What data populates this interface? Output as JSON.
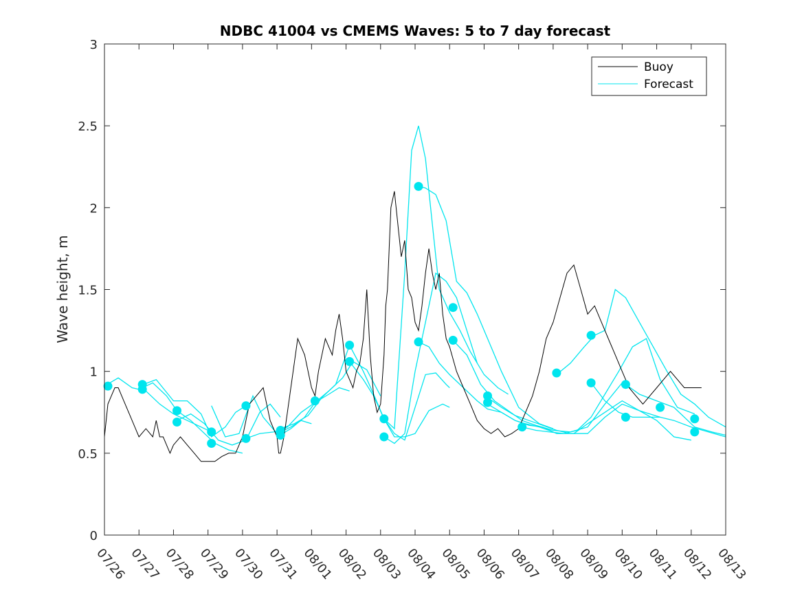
{
  "chart_data": {
    "type": "line",
    "title": "NDBC 41004 vs CMEMS Waves: 5 to 7 day forecast",
    "ylabel": "Wave height, m",
    "xlabel": "",
    "xlim": [
      0,
      18
    ],
    "ylim": [
      0,
      3
    ],
    "x_tick_labels": [
      "07/26",
      "07/27",
      "07/28",
      "07/29",
      "07/30",
      "07/31",
      "08/01",
      "08/02",
      "08/03",
      "08/04",
      "08/05",
      "08/06",
      "08/07",
      "08/08",
      "08/09",
      "08/10",
      "08/11",
      "08/12",
      "08/13"
    ],
    "y_ticks": [
      0,
      0.5,
      1,
      1.5,
      2,
      2.5,
      3
    ],
    "y_tick_labels": [
      "0",
      "0.5",
      "1",
      "1.5",
      "2",
      "2.5",
      "3"
    ],
    "grid": false,
    "legend_position": "top-right",
    "legend": [
      {
        "label": "Buoy",
        "color": "#000000"
      },
      {
        "label": "Forecast",
        "color": "#00e5ee"
      }
    ],
    "colors": {
      "buoy": "#000000",
      "forecast": "#00e5ee",
      "axes": "#262626"
    },
    "buoy": {
      "x": [
        0,
        0.05,
        0.1,
        0.2,
        0.3,
        0.4,
        0.5,
        0.6,
        0.7,
        0.8,
        0.9,
        1.0,
        1.2,
        1.4,
        1.5,
        1.6,
        1.7,
        1.8,
        1.9,
        2.0,
        2.2,
        2.4,
        2.6,
        2.8,
        3.0,
        3.2,
        3.4,
        3.6,
        3.8,
        4.0,
        4.2,
        4.4,
        4.6,
        4.8,
        5.0,
        5.05,
        5.1,
        5.2,
        5.3,
        5.4,
        5.5,
        5.6,
        5.7,
        5.8,
        6.0,
        6.1,
        6.2,
        6.3,
        6.4,
        6.5,
        6.6,
        6.7,
        6.8,
        6.9,
        7.0,
        7.1,
        7.2,
        7.3,
        7.4,
        7.5,
        7.6,
        7.7,
        7.8,
        7.9,
        8.0,
        8.05,
        8.1,
        8.15,
        8.2,
        8.3,
        8.4,
        8.5,
        8.6,
        8.7,
        8.8,
        8.9,
        9.0,
        9.1,
        9.2,
        9.3,
        9.4,
        9.5,
        9.6,
        9.7,
        9.8,
        9.9,
        10.0,
        10.2,
        10.4,
        10.6,
        10.8,
        11.0,
        11.2,
        11.4,
        11.6,
        11.8,
        12.0,
        12.2,
        12.4,
        12.6,
        12.8,
        13.0,
        13.2,
        13.4,
        13.6,
        13.8,
        14.0,
        14.2,
        14.4,
        14.6,
        14.8,
        15.0,
        15.2,
        15.4,
        15.6,
        15.8,
        16.0,
        16.2,
        16.4,
        16.6,
        16.8,
        17.0,
        17.2,
        17.3
      ],
      "y": [
        0.6,
        0.7,
        0.8,
        0.85,
        0.9,
        0.9,
        0.85,
        0.8,
        0.75,
        0.7,
        0.65,
        0.6,
        0.65,
        0.6,
        0.7,
        0.6,
        0.6,
        0.55,
        0.5,
        0.55,
        0.6,
        0.55,
        0.5,
        0.45,
        0.45,
        0.45,
        0.48,
        0.5,
        0.5,
        0.6,
        0.8,
        0.85,
        0.9,
        0.7,
        0.6,
        0.5,
        0.5,
        0.6,
        0.75,
        0.9,
        1.05,
        1.2,
        1.15,
        1.1,
        0.9,
        0.85,
        1.0,
        1.1,
        1.2,
        1.15,
        1.1,
        1.25,
        1.35,
        1.2,
        1.0,
        0.95,
        0.9,
        1.0,
        1.05,
        1.2,
        1.5,
        1.1,
        0.85,
        0.75,
        0.8,
        0.95,
        1.1,
        1.4,
        1.5,
        2.0,
        2.1,
        1.9,
        1.7,
        1.8,
        1.5,
        1.45,
        1.3,
        1.25,
        1.4,
        1.6,
        1.75,
        1.6,
        1.5,
        1.6,
        1.35,
        1.2,
        1.15,
        1.0,
        0.9,
        0.8,
        0.7,
        0.65,
        0.62,
        0.65,
        0.6,
        0.62,
        0.65,
        0.75,
        0.85,
        1.0,
        1.2,
        1.3,
        1.45,
        1.6,
        1.65,
        1.5,
        1.35,
        1.4,
        1.3,
        1.2,
        1.1,
        1.0,
        0.9,
        0.85,
        0.8,
        0.85,
        0.9,
        0.95,
        1.0,
        0.95,
        0.9,
        0.9,
        0.9,
        0.9
      ]
    },
    "forecast_series": [
      {
        "x": [
          0,
          0.4,
          0.8,
          1.2,
          1.6,
          2.0,
          2.4,
          2.8,
          3.1
        ],
        "y": [
          0.91,
          0.96,
          0.9,
          0.88,
          0.8,
          0.74,
          0.7,
          0.66,
          0.63
        ]
      },
      {
        "x": [
          1.0,
          1.4,
          1.8,
          2.1,
          2.5,
          2.9,
          3.2,
          3.6,
          4.0
        ],
        "y": [
          0.89,
          0.93,
          0.85,
          0.76,
          0.7,
          0.62,
          0.56,
          0.52,
          0.5
        ]
      },
      {
        "x": [
          1.0,
          1.5,
          2.0,
          2.4,
          2.8,
          3.1,
          3.5,
          3.8,
          4.1
        ],
        "y": [
          0.91,
          0.95,
          0.82,
          0.82,
          0.74,
          0.6,
          0.66,
          0.75,
          0.79
        ]
      },
      {
        "x": [
          2.0,
          2.5,
          2.9,
          3.3,
          3.7,
          4.1,
          4.5,
          4.8,
          5.1
        ],
        "y": [
          0.69,
          0.74,
          0.68,
          0.58,
          0.55,
          0.58,
          0.75,
          0.8,
          0.72
        ]
      },
      {
        "x": [
          3.1,
          3.5,
          3.9,
          4.3,
          4.6,
          5.0,
          5.4,
          5.7,
          6.0
        ],
        "y": [
          0.79,
          0.6,
          0.62,
          0.85,
          0.72,
          0.62,
          0.66,
          0.7,
          0.68
        ]
      },
      {
        "x": [
          4.1,
          4.5,
          4.9,
          5.3,
          5.7,
          6.1,
          6.5,
          6.8,
          7.1
        ],
        "y": [
          0.59,
          0.62,
          0.63,
          0.66,
          0.75,
          0.81,
          0.86,
          0.9,
          0.88
        ]
      },
      {
        "x": [
          5.0,
          5.4,
          5.8,
          6.1,
          6.5,
          6.9,
          7.2,
          7.6,
          8.0
        ],
        "y": [
          0.6,
          0.65,
          0.72,
          0.81,
          0.88,
          0.96,
          1.06,
          1.01,
          0.85
        ]
      },
      {
        "x": [
          5.1,
          5.5,
          5.9,
          6.3,
          6.7,
          7.1,
          7.5,
          7.8,
          8.1
        ],
        "y": [
          0.65,
          0.68,
          0.73,
          0.84,
          0.92,
          1.16,
          1.0,
          0.86,
          0.71
        ]
      },
      {
        "x": [
          7.1,
          7.5,
          7.8,
          8.1,
          8.4,
          8.7,
          9.0,
          9.4,
          9.8,
          10.0
        ],
        "y": [
          1.06,
          0.95,
          0.85,
          0.71,
          0.6,
          0.6,
          0.62,
          0.76,
          0.8,
          0.78
        ]
      },
      {
        "x": [
          8.1,
          8.4,
          8.7,
          9.0,
          9.3,
          9.6,
          9.9,
          10.2,
          10.5,
          10.8
        ],
        "y": [
          0.6,
          0.56,
          0.62,
          1.0,
          1.3,
          1.6,
          1.55,
          1.45,
          1.25,
          1.05
        ]
      },
      {
        "x": [
          8.1,
          8.4,
          8.7,
          9.0,
          9.3,
          9.6,
          9.9,
          10.0
        ],
        "y": [
          0.71,
          0.62,
          0.58,
          0.78,
          0.98,
          0.99,
          0.92,
          0.9
        ]
      },
      {
        "x": [
          8.1,
          8.4,
          8.7,
          8.9,
          9.1,
          9.3,
          9.5,
          9.7,
          10.0,
          10.3,
          10.6,
          11.0,
          11.4,
          11.7
        ],
        "y": [
          0.71,
          0.65,
          1.6,
          2.35,
          2.5,
          2.3,
          1.9,
          1.5,
          1.36,
          1.25,
          1.12,
          0.98,
          0.9,
          0.86
        ]
      },
      {
        "x": [
          9.1,
          9.3,
          9.6,
          9.9,
          10.2,
          10.5,
          10.8,
          11.1,
          11.5,
          12.0,
          12.6,
          13.0
        ],
        "y": [
          2.13,
          2.12,
          2.08,
          1.92,
          1.55,
          1.48,
          1.35,
          1.2,
          1.0,
          0.78,
          0.68,
          0.65
        ]
      },
      {
        "x": [
          9.1,
          9.4,
          9.7,
          10.0,
          10.4,
          10.8,
          11.1,
          11.5,
          11.9,
          12.2,
          12.6,
          13.0
        ],
        "y": [
          1.18,
          1.15,
          1.05,
          0.98,
          0.9,
          0.82,
          0.77,
          0.75,
          0.7,
          0.68,
          0.66,
          0.63
        ]
      },
      {
        "x": [
          10.1,
          10.5,
          10.9,
          11.3,
          11.7,
          12.1,
          12.5,
          13.0,
          13.5,
          14.0,
          14.5,
          15.0
        ],
        "y": [
          1.19,
          1.1,
          0.92,
          0.82,
          0.76,
          0.7,
          0.67,
          0.64,
          0.63,
          0.66,
          0.8,
          0.93
        ]
      },
      {
        "x": [
          11.1,
          11.5,
          11.9,
          12.3,
          12.7,
          13.1,
          13.5,
          14.0,
          14.5,
          15.0,
          15.5,
          16.1
        ],
        "y": [
          0.84,
          0.78,
          0.73,
          0.7,
          0.67,
          0.64,
          0.62,
          0.62,
          0.72,
          0.8,
          0.76,
          0.72
        ]
      },
      {
        "x": [
          11.1,
          11.5,
          11.9,
          12.3,
          12.7,
          13.1,
          13.6,
          14.0,
          14.5,
          15.0,
          15.5,
          16.0,
          16.5,
          17.0
        ],
        "y": [
          0.8,
          0.75,
          0.7,
          0.67,
          0.66,
          0.62,
          0.62,
          0.68,
          0.75,
          0.82,
          0.76,
          0.7,
          0.6,
          0.58
        ]
      },
      {
        "x": [
          12.1,
          12.5,
          12.9,
          13.3,
          13.7,
          14.1,
          14.5,
          14.9,
          15.3,
          15.7,
          16.1,
          16.6,
          17.1
        ],
        "y": [
          0.66,
          0.64,
          0.63,
          0.62,
          0.64,
          0.72,
          0.86,
          1.0,
          1.15,
          1.2,
          0.95,
          0.78,
          0.74
        ]
      },
      {
        "x": [
          13.1,
          13.5,
          13.9,
          14.2,
          14.5,
          14.8,
          15.1,
          15.5,
          15.9,
          16.3,
          16.7,
          17.1,
          17.5,
          18.0
        ],
        "y": [
          0.98,
          1.05,
          1.15,
          1.22,
          1.25,
          1.5,
          1.45,
          1.3,
          1.15,
          1.0,
          0.86,
          0.8,
          0.72,
          0.66
        ]
      },
      {
        "x": [
          14.1,
          14.5,
          14.9,
          15.3,
          15.7,
          16.1,
          16.5,
          17.0,
          17.5,
          18.0
        ],
        "y": [
          0.93,
          0.82,
          0.75,
          0.72,
          0.72,
          0.72,
          0.7,
          0.66,
          0.63,
          0.6
        ]
      },
      {
        "x": [
          15.1,
          15.5,
          16.0,
          16.5,
          17.1,
          17.6,
          18.0
        ],
        "y": [
          0.92,
          0.86,
          0.82,
          0.78,
          0.66,
          0.63,
          0.61
        ]
      }
    ],
    "forecast_markers": {
      "x": [
        0.1,
        1.1,
        1.1,
        2.1,
        2.1,
        3.1,
        3.1,
        4.1,
        4.1,
        5.1,
        5.1,
        6.1,
        7.1,
        7.1,
        8.1,
        8.1,
        9.1,
        9.1,
        10.1,
        10.1,
        11.1,
        11.1,
        12.1,
        13.1,
        14.1,
        14.1,
        15.1,
        15.1,
        16.1,
        17.1,
        17.1
      ],
      "y": [
        0.91,
        0.92,
        0.89,
        0.76,
        0.69,
        0.63,
        0.56,
        0.79,
        0.59,
        0.64,
        0.61,
        0.82,
        1.16,
        1.06,
        0.71,
        0.6,
        2.13,
        1.18,
        1.39,
        1.19,
        0.85,
        0.81,
        0.66,
        0.99,
        1.22,
        0.93,
        0.92,
        0.72,
        0.78,
        0.71,
        0.63
      ]
    }
  }
}
